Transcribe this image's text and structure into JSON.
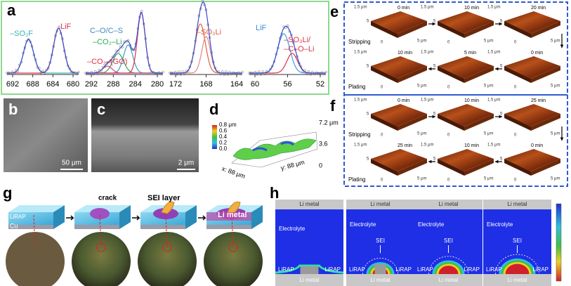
{
  "a": {
    "label": "a",
    "plots": [
      {
        "labels": [
          "–SO₂F",
          "LiF"
        ],
        "ticks": [
          692,
          688,
          684,
          680
        ]
      },
      {
        "labels": [
          "C–O/C–S",
          "–CO₂–Li",
          "–CO₂–(GO)"
        ],
        "ticks": [
          292,
          288,
          284,
          280
        ]
      },
      {
        "labels": [
          "–SO₃Li"
        ],
        "ticks": [
          172,
          168,
          164
        ]
      },
      {
        "labels": [
          "LiF",
          "–SO₃Li/",
          "–C–O–Li"
        ],
        "ticks": [
          60,
          56,
          52
        ]
      }
    ]
  },
  "b": {
    "label": "b",
    "scale": "50 μm"
  },
  "c": {
    "label": "c",
    "scale": "2 μm"
  },
  "d": {
    "label": "d",
    "colorbar": [
      "0.8 μm",
      "0.6",
      "0.4",
      "0.2",
      "0.0"
    ],
    "z_axis": [
      "7.2 μm",
      "3.6",
      "0"
    ],
    "x_axis": "x: 88 μm",
    "y_axis": "y: 88 μm"
  },
  "e": {
    "label": "e",
    "rows": [
      "Stripping",
      "Plating"
    ],
    "times": [
      [
        "0 min",
        "10 min",
        "20 min"
      ],
      [
        "10 min",
        "5 min",
        "0 min"
      ]
    ]
  },
  "f": {
    "label": "f",
    "rows": [
      "Stripping",
      "Plating"
    ],
    "times": [
      [
        "0 min",
        "10 min",
        "25 min"
      ],
      [
        "25 min",
        "10 min",
        "0 min"
      ]
    ]
  },
  "tile_axis": [
    "1.5 μm",
    "5",
    "0",
    "5 μm"
  ],
  "g": {
    "label": "g",
    "layers": [
      "LiRAP",
      "Cu"
    ],
    "callouts": [
      "crack",
      "SEI layer",
      "Li metal"
    ]
  },
  "h": {
    "label": "h",
    "top": "Li metal",
    "electrolyte": "Electrolyte",
    "sei": "SEI",
    "lirap": "LiRAP",
    "bottom": "Li metal"
  }
}
